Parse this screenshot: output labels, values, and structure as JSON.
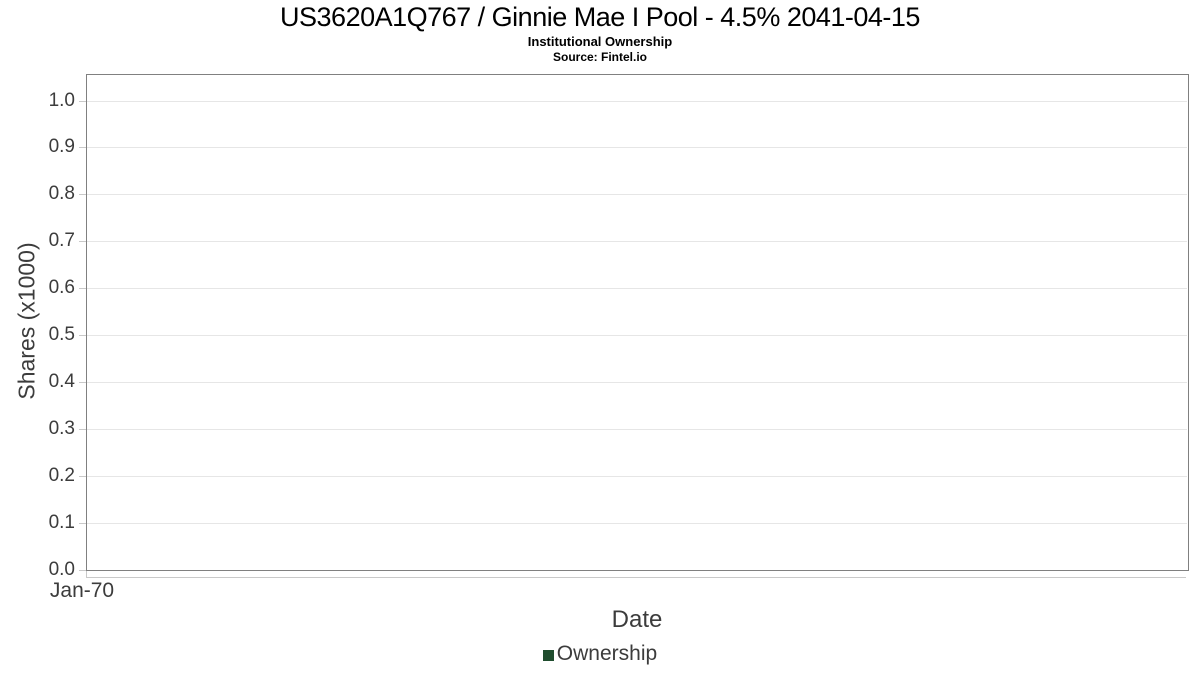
{
  "chart_data": {
    "type": "line",
    "title": "US3620A1Q767 / Ginnie Mae I Pool - 4.5% 2041-04-15",
    "subtitle": "Institutional Ownership",
    "source": "Source: Fintel.io",
    "xlabel": "Date",
    "ylabel": "Shares (x1000)",
    "x_tick_labels": [
      "Jan-70"
    ],
    "y_tick_labels": [
      "0.0",
      "0.1",
      "0.2",
      "0.3",
      "0.4",
      "0.5",
      "0.6",
      "0.7",
      "0.8",
      "0.9",
      "1.0"
    ],
    "ylim": [
      0,
      1.055
    ],
    "grid": true,
    "legend_position": "bottom-center",
    "series": [
      {
        "name": "Ownership",
        "color": "#1f4d2e",
        "points": []
      }
    ],
    "colors": {
      "plot_border": "#808080",
      "gridline": "#e6e6e6",
      "tick_mark": "#c9c9c9",
      "axis_text": "#3c3c3c",
      "title_text": "#000000"
    }
  }
}
